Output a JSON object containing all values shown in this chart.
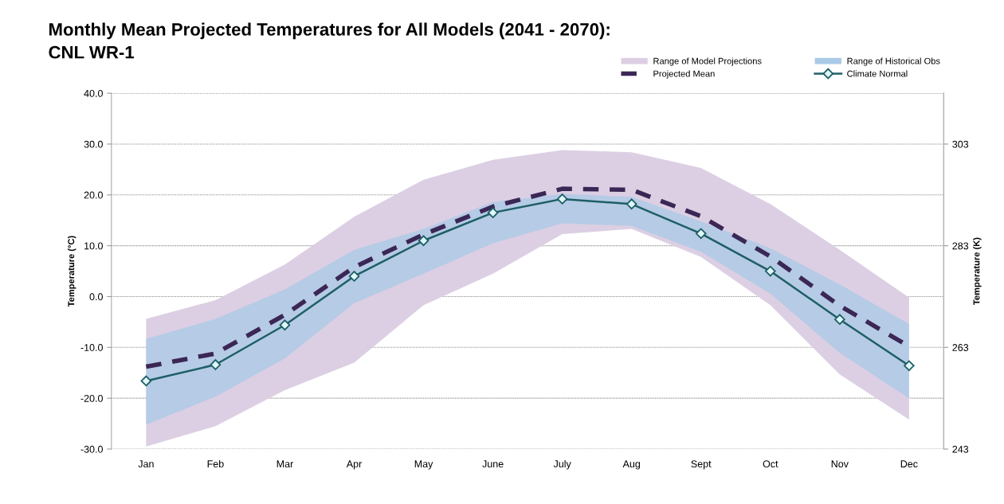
{
  "chart_data": {
    "type": "line",
    "title": "Monthly Mean Projected Temperatures for All Models (2041 - 2070):\nCNL WR-1",
    "ylabel": "Temperature (°C)",
    "y2label": "Temperature (K)",
    "categories": [
      "Jan",
      "Feb",
      "Mar",
      "Apr",
      "May",
      "June",
      "July",
      "Aug",
      "Sept",
      "Oct",
      "Nov",
      "Dec"
    ],
    "series": [
      {
        "name": "Range of Model Projections",
        "color": "#dccfe3",
        "values": [
          null,
          null,
          null,
          null,
          null,
          null,
          null,
          null,
          null,
          null,
          null,
          null
        ],
        "lower": [
          -29.5,
          -25.5,
          -18.4,
          -13.0,
          -1.7,
          4.5,
          12.3,
          13.3,
          7.8,
          -1.7,
          -15.3,
          -24.2
        ],
        "upper": [
          -4.4,
          -0.7,
          6.3,
          15.7,
          23.0,
          26.9,
          28.8,
          28.4,
          25.3,
          18.2,
          9.2,
          -0.2
        ]
      },
      {
        "name": "Range of Historical Obs",
        "color": "#a9c9e6",
        "values": [
          null,
          null,
          null,
          null,
          null,
          null,
          null,
          null,
          null,
          null,
          null,
          null
        ],
        "lower": [
          -25.2,
          -19.7,
          -12.2,
          -1.3,
          4.5,
          10.5,
          14.4,
          13.9,
          8.8,
          0.6,
          -11.1,
          -20.0
        ],
        "upper": [
          -8.3,
          -4.4,
          1.4,
          9.2,
          13.3,
          18.6,
          20.2,
          19.6,
          14.8,
          9.5,
          2.4,
          -5.4
        ]
      },
      {
        "name": "Projected Mean",
        "color": "#3b2756",
        "line_style": "dashed",
        "marker": "none",
        "values": [
          -13.8,
          -11.2,
          -3.6,
          5.8,
          12.2,
          17.7,
          21.2,
          21.0,
          15.8,
          7.9,
          -1.8,
          -9.8
        ]
      },
      {
        "name": "Climate Normal",
        "color": "#1d5f66",
        "line_style": "solid",
        "marker": "diamond",
        "values": [
          -16.6,
          -13.4,
          -5.6,
          4.0,
          11.0,
          16.5,
          19.2,
          18.2,
          12.4,
          5.0,
          -4.5,
          -13.6
        ]
      }
    ],
    "ylim": [
      -30,
      40
    ],
    "yticks": [
      {
        "value": -30,
        "label": "-30.0"
      },
      {
        "value": -20,
        "label": "-20.0"
      },
      {
        "value": -10,
        "label": "-10.0"
      },
      {
        "value": 0,
        "label": "0.0"
      },
      {
        "value": 10,
        "label": "10.0"
      },
      {
        "value": 20,
        "label": "20.0"
      },
      {
        "value": 30,
        "label": "30.0"
      },
      {
        "value": 40,
        "label": "40.0"
      }
    ],
    "y2lim": [
      243,
      313
    ],
    "y2ticks": [
      243,
      263,
      283,
      303
    ],
    "grid": "y",
    "legend": "top right"
  }
}
